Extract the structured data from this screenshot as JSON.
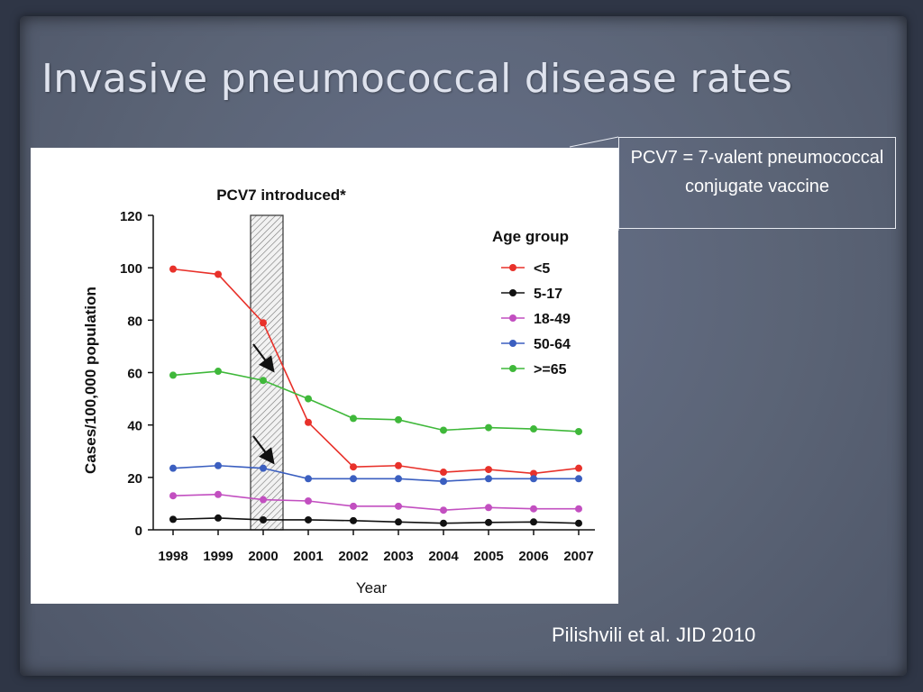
{
  "slide": {
    "title": "Invasive pneumococcal disease rates",
    "callout": "PCV7 = 7-valent pneumococcal conjugate vaccine",
    "citation": "Pilishvili et al. JID 2010"
  },
  "chart_data": {
    "type": "line",
    "title": "PCV7 introduced*",
    "xlabel": "Year",
    "ylabel": "Cases/100,000 population",
    "ylim": [
      0,
      120
    ],
    "yticks": [
      0,
      20,
      40,
      60,
      80,
      100,
      120
    ],
    "categories": [
      "1998",
      "1999",
      "2000",
      "2001",
      "2002",
      "2003",
      "2004",
      "2005",
      "2006",
      "2007"
    ],
    "legend_title": "Age group",
    "legend_position": "top-right",
    "grid": false,
    "shaded_band": "2000",
    "series": [
      {
        "name": "<5",
        "color": "#e8312a",
        "values": [
          99.5,
          97.5,
          79,
          41,
          24,
          24.5,
          22,
          23,
          21.5,
          23.5
        ]
      },
      {
        "name": "5-17",
        "color": "#111111",
        "values": [
          4,
          4.5,
          3.8,
          3.8,
          3.5,
          3,
          2.5,
          2.8,
          3,
          2.5
        ]
      },
      {
        "name": "18-49",
        "color": "#c24fc0",
        "values": [
          13,
          13.5,
          11.5,
          11,
          9,
          9,
          7.5,
          8.5,
          8,
          8
        ]
      },
      {
        "name": "50-64",
        "color": "#3b5fc0",
        "values": [
          23.5,
          24.5,
          23.5,
          19.5,
          19.5,
          19.5,
          18.5,
          19.5,
          19.5,
          19.5
        ]
      },
      {
        "name": ">=65",
        "color": "#3fb83a",
        "values": [
          59,
          60.5,
          57,
          50,
          42.5,
          42,
          38,
          39,
          38.5,
          37.5
        ]
      }
    ]
  }
}
